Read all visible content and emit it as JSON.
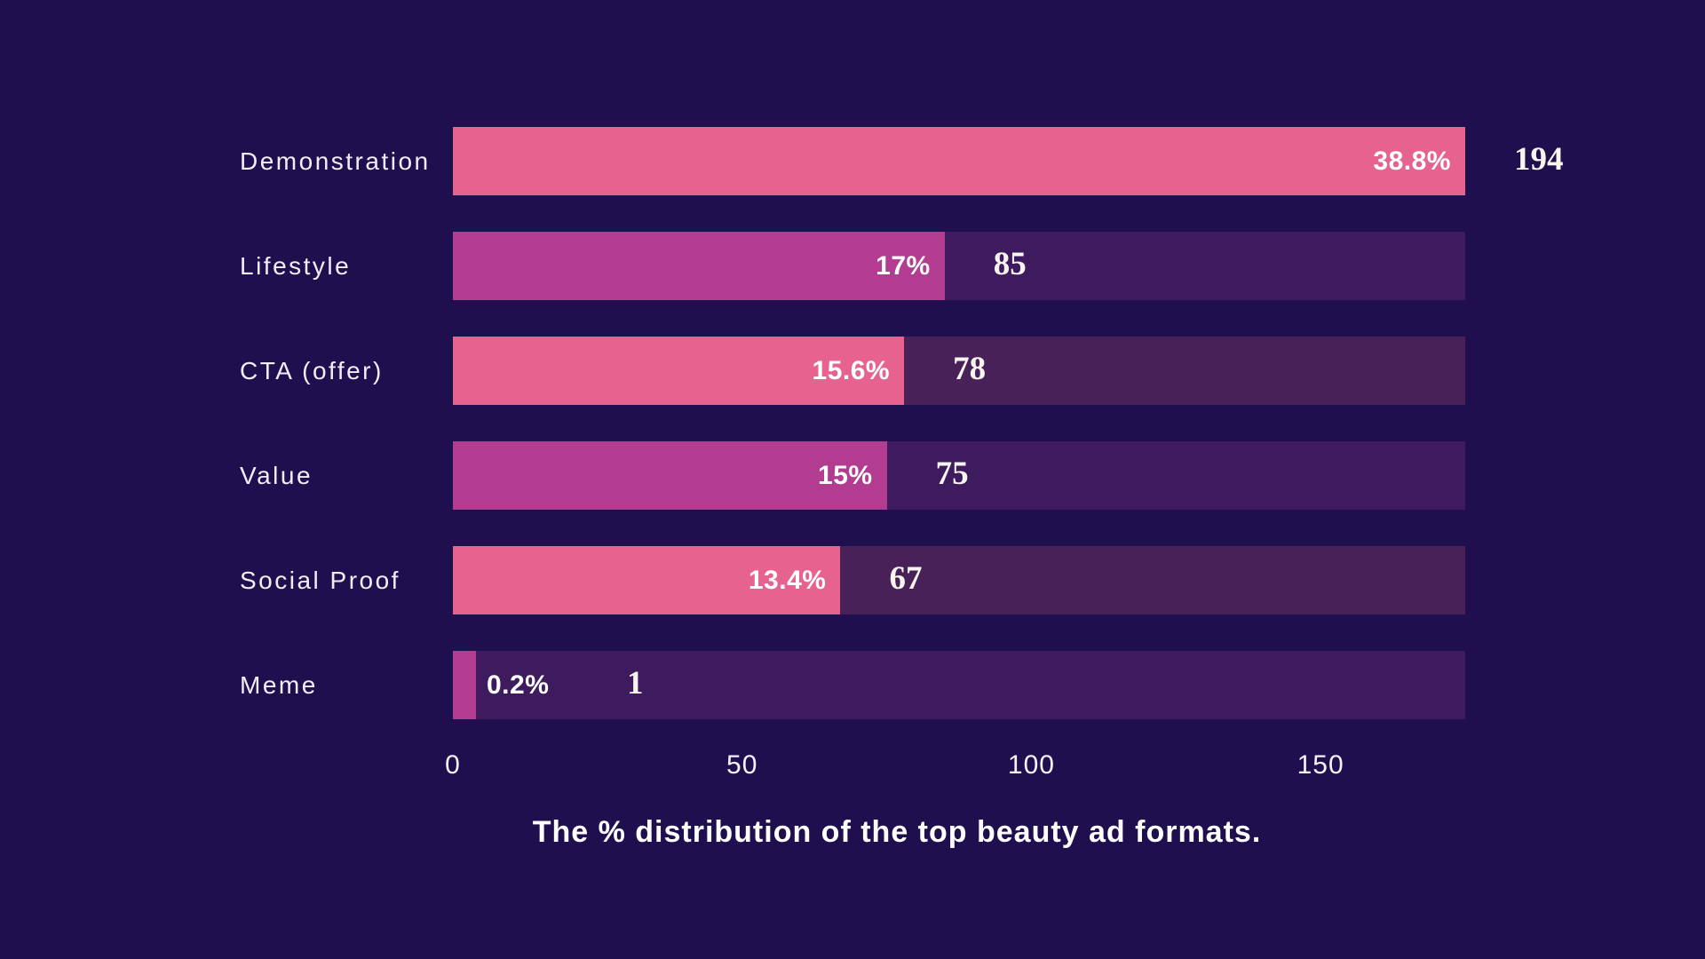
{
  "colors": {
    "background": "#200f4e",
    "pink": "#e66390",
    "magenta": "#b23c8f",
    "track_pink_row": "#482159",
    "track_magenta_row": "#3d1b5e",
    "label_text": "#f2eef8",
    "value_text": "#ffffff"
  },
  "chart_data": {
    "type": "bar",
    "orientation": "horizontal",
    "title": "The % distribution of the top beauty ad formats.",
    "categories": [
      "Demonstration",
      "Lifestyle",
      "CTA (offer)",
      "Value",
      "Social Proof",
      "Meme"
    ],
    "series": [
      {
        "name": "count",
        "values": [
          194,
          85,
          78,
          75,
          67,
          1
        ]
      },
      {
        "name": "percent_labels",
        "values": [
          "38.8%",
          "17%",
          "15.6%",
          "15%",
          "13.4%",
          "0.2%"
        ]
      }
    ],
    "bar_colors": [
      "#e66390",
      "#b23c8f",
      "#e66390",
      "#b23c8f",
      "#e66390",
      "#b23c8f"
    ],
    "track_colors": [
      "#482159",
      "#3d1b5e",
      "#482159",
      "#3d1b5e",
      "#482159",
      "#3d1b5e"
    ],
    "xlabel": "",
    "ylabel": "",
    "xlim": [
      0,
      175
    ],
    "x_ticks": [
      0,
      50,
      100,
      150
    ],
    "grid": false,
    "legend": "none",
    "value_labels": "counts shown right of each bar, percent shown on bar"
  }
}
